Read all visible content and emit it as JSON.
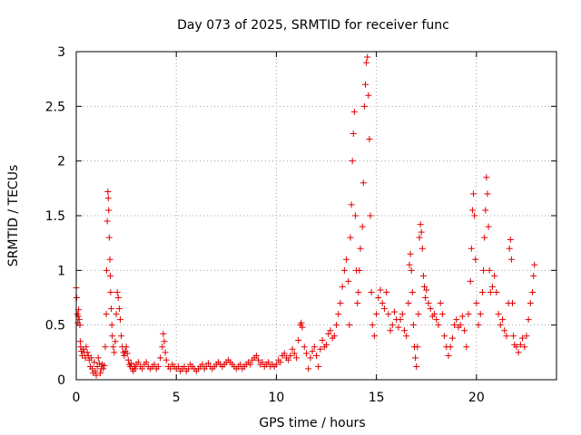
{
  "chart_data": {
    "type": "scatter",
    "title": "Day 073 of 2025, SRMTID for receiver func",
    "xlabel": "GPS time / hours",
    "ylabel": "SRMTID / TECUs",
    "xlim": [
      0,
      24
    ],
    "ylim": [
      0,
      3
    ],
    "grid": true,
    "marker": "plus",
    "x_ticks": [
      0,
      5,
      10,
      15,
      20
    ],
    "x_tick_labels": [
      "0",
      "5",
      "10",
      "15",
      "20"
    ],
    "y_ticks": [
      0,
      0.5,
      1,
      1.5,
      2,
      2.5,
      3
    ],
    "y_tick_labels": [
      "0",
      "0.5",
      "1",
      "1.5",
      "2",
      "2.5",
      "3"
    ],
    "colors": {
      "series": "#e00000",
      "grid": "#a0a0a0",
      "axis": "#000000"
    },
    "series": [
      {
        "name": "SRMTID",
        "points": [
          [
            0.0,
            0.84
          ],
          [
            0.02,
            0.75
          ],
          [
            0.05,
            0.6
          ],
          [
            0.08,
            0.52
          ],
          [
            0.1,
            0.58
          ],
          [
            0.12,
            0.64
          ],
          [
            0.15,
            0.55
          ],
          [
            0.18,
            0.5
          ],
          [
            0.2,
            0.35
          ],
          [
            0.22,
            0.3
          ],
          [
            0.25,
            0.26
          ],
          [
            0.3,
            0.22
          ],
          [
            0.35,
            0.28
          ],
          [
            0.4,
            0.25
          ],
          [
            0.45,
            0.2
          ],
          [
            0.5,
            0.3
          ],
          [
            0.55,
            0.25
          ],
          [
            0.6,
            0.22
          ],
          [
            0.65,
            0.18
          ],
          [
            0.7,
            0.12
          ],
          [
            0.75,
            0.2
          ],
          [
            0.8,
            0.1
          ],
          [
            0.85,
            0.06
          ],
          [
            0.9,
            0.16
          ],
          [
            0.95,
            0.08
          ],
          [
            1.0,
            0.04
          ],
          [
            1.05,
            0.12
          ],
          [
            1.1,
            0.2
          ],
          [
            1.15,
            0.15
          ],
          [
            1.2,
            0.06
          ],
          [
            1.25,
            0.1
          ],
          [
            1.3,
            0.14
          ],
          [
            1.35,
            0.1
          ],
          [
            1.4,
            0.13
          ],
          [
            1.45,
            0.3
          ],
          [
            1.5,
            0.6
          ],
          [
            1.52,
            1.0
          ],
          [
            1.55,
            1.45
          ],
          [
            1.58,
            1.72
          ],
          [
            1.6,
            1.66
          ],
          [
            1.62,
            1.55
          ],
          [
            1.65,
            1.3
          ],
          [
            1.68,
            1.1
          ],
          [
            1.7,
            0.95
          ],
          [
            1.72,
            0.8
          ],
          [
            1.75,
            0.65
          ],
          [
            1.78,
            0.5
          ],
          [
            1.8,
            0.4
          ],
          [
            1.85,
            0.3
          ],
          [
            1.9,
            0.25
          ],
          [
            1.95,
            0.35
          ],
          [
            2.0,
            0.6
          ],
          [
            2.05,
            0.8
          ],
          [
            2.1,
            0.75
          ],
          [
            2.15,
            0.65
          ],
          [
            2.2,
            0.55
          ],
          [
            2.25,
            0.4
          ],
          [
            2.3,
            0.3
          ],
          [
            2.35,
            0.25
          ],
          [
            2.4,
            0.22
          ],
          [
            2.45,
            0.26
          ],
          [
            2.5,
            0.3
          ],
          [
            2.55,
            0.24
          ],
          [
            2.6,
            0.18
          ],
          [
            2.65,
            0.14
          ],
          [
            2.7,
            0.12
          ],
          [
            2.75,
            0.15
          ],
          [
            2.8,
            0.1
          ],
          [
            2.85,
            0.08
          ],
          [
            2.9,
            0.12
          ],
          [
            2.95,
            0.1
          ],
          [
            3.0,
            0.14
          ],
          [
            3.1,
            0.16
          ],
          [
            3.2,
            0.12
          ],
          [
            3.3,
            0.1
          ],
          [
            3.4,
            0.14
          ],
          [
            3.5,
            0.16
          ],
          [
            3.6,
            0.12
          ],
          [
            3.7,
            0.1
          ],
          [
            3.8,
            0.12
          ],
          [
            3.9,
            0.14
          ],
          [
            4.0,
            0.1
          ],
          [
            4.1,
            0.12
          ],
          [
            4.2,
            0.2
          ],
          [
            4.3,
            0.3
          ],
          [
            4.35,
            0.42
          ],
          [
            4.4,
            0.35
          ],
          [
            4.45,
            0.25
          ],
          [
            4.5,
            0.18
          ],
          [
            4.6,
            0.12
          ],
          [
            4.7,
            0.1
          ],
          [
            4.8,
            0.14
          ],
          [
            4.9,
            0.12
          ],
          [
            5.0,
            0.1
          ],
          [
            5.1,
            0.12
          ],
          [
            5.2,
            0.08
          ],
          [
            5.3,
            0.1
          ],
          [
            5.4,
            0.12
          ],
          [
            5.5,
            0.08
          ],
          [
            5.6,
            0.1
          ],
          [
            5.7,
            0.14
          ],
          [
            5.8,
            0.12
          ],
          [
            5.9,
            0.1
          ],
          [
            6.0,
            0.08
          ],
          [
            6.1,
            0.1
          ],
          [
            6.2,
            0.12
          ],
          [
            6.3,
            0.14
          ],
          [
            6.4,
            0.1
          ],
          [
            6.5,
            0.12
          ],
          [
            6.6,
            0.15
          ],
          [
            6.7,
            0.12
          ],
          [
            6.8,
            0.1
          ],
          [
            6.9,
            0.12
          ],
          [
            7.0,
            0.14
          ],
          [
            7.1,
            0.16
          ],
          [
            7.2,
            0.14
          ],
          [
            7.3,
            0.12
          ],
          [
            7.4,
            0.14
          ],
          [
            7.5,
            0.16
          ],
          [
            7.6,
            0.18
          ],
          [
            7.7,
            0.16
          ],
          [
            7.8,
            0.14
          ],
          [
            7.9,
            0.12
          ],
          [
            8.0,
            0.1
          ],
          [
            8.1,
            0.12
          ],
          [
            8.2,
            0.14
          ],
          [
            8.3,
            0.1
          ],
          [
            8.4,
            0.12
          ],
          [
            8.5,
            0.14
          ],
          [
            8.6,
            0.16
          ],
          [
            8.7,
            0.14
          ],
          [
            8.8,
            0.18
          ],
          [
            8.9,
            0.2
          ],
          [
            9.0,
            0.22
          ],
          [
            9.1,
            0.18
          ],
          [
            9.2,
            0.14
          ],
          [
            9.3,
            0.16
          ],
          [
            9.4,
            0.12
          ],
          [
            9.5,
            0.14
          ],
          [
            9.6,
            0.16
          ],
          [
            9.7,
            0.12
          ],
          [
            9.8,
            0.14
          ],
          [
            9.9,
            0.12
          ],
          [
            10.0,
            0.14
          ],
          [
            10.1,
            0.18
          ],
          [
            10.2,
            0.16
          ],
          [
            10.3,
            0.22
          ],
          [
            10.4,
            0.24
          ],
          [
            10.5,
            0.2
          ],
          [
            10.6,
            0.18
          ],
          [
            10.7,
            0.22
          ],
          [
            10.8,
            0.28
          ],
          [
            10.9,
            0.24
          ],
          [
            11.0,
            0.2
          ],
          [
            11.1,
            0.36
          ],
          [
            11.2,
            0.5
          ],
          [
            11.25,
            0.52
          ],
          [
            11.3,
            0.48
          ],
          [
            11.4,
            0.3
          ],
          [
            11.5,
            0.24
          ],
          [
            11.6,
            0.1
          ],
          [
            11.7,
            0.2
          ],
          [
            11.8,
            0.26
          ],
          [
            11.9,
            0.3
          ],
          [
            12.0,
            0.22
          ],
          [
            12.1,
            0.12
          ],
          [
            12.2,
            0.28
          ],
          [
            12.3,
            0.36
          ],
          [
            12.4,
            0.3
          ],
          [
            12.5,
            0.32
          ],
          [
            12.6,
            0.42
          ],
          [
            12.7,
            0.45
          ],
          [
            12.8,
            0.38
          ],
          [
            12.9,
            0.4
          ],
          [
            13.0,
            0.5
          ],
          [
            13.1,
            0.6
          ],
          [
            13.2,
            0.7
          ],
          [
            13.3,
            0.85
          ],
          [
            13.4,
            1.0
          ],
          [
            13.5,
            1.1
          ],
          [
            13.6,
            0.9
          ],
          [
            13.65,
            0.5
          ],
          [
            13.7,
            1.3
          ],
          [
            13.75,
            1.6
          ],
          [
            13.8,
            2.0
          ],
          [
            13.85,
            2.25
          ],
          [
            13.9,
            2.45
          ],
          [
            13.95,
            1.5
          ],
          [
            14.0,
            1.0
          ],
          [
            14.05,
            0.7
          ],
          [
            14.1,
            0.8
          ],
          [
            14.15,
            1.0
          ],
          [
            14.2,
            1.2
          ],
          [
            14.3,
            1.4
          ],
          [
            14.35,
            1.8
          ],
          [
            14.4,
            2.5
          ],
          [
            14.45,
            2.7
          ],
          [
            14.5,
            2.9
          ],
          [
            14.55,
            2.95
          ],
          [
            14.6,
            2.6
          ],
          [
            14.65,
            2.2
          ],
          [
            14.7,
            1.5
          ],
          [
            14.75,
            0.8
          ],
          [
            14.8,
            0.5
          ],
          [
            14.9,
            0.4
          ],
          [
            15.0,
            0.6
          ],
          [
            15.1,
            0.75
          ],
          [
            15.2,
            0.82
          ],
          [
            15.3,
            0.7
          ],
          [
            15.4,
            0.65
          ],
          [
            15.5,
            0.8
          ],
          [
            15.6,
            0.6
          ],
          [
            15.7,
            0.45
          ],
          [
            15.8,
            0.5
          ],
          [
            15.9,
            0.62
          ],
          [
            16.0,
            0.55
          ],
          [
            16.1,
            0.48
          ],
          [
            16.2,
            0.55
          ],
          [
            16.3,
            0.6
          ],
          [
            16.4,
            0.45
          ],
          [
            16.5,
            0.4
          ],
          [
            16.6,
            0.7
          ],
          [
            16.65,
            1.05
          ],
          [
            16.7,
            1.15
          ],
          [
            16.75,
            1.0
          ],
          [
            16.8,
            0.8
          ],
          [
            16.85,
            0.5
          ],
          [
            16.9,
            0.3
          ],
          [
            16.95,
            0.2
          ],
          [
            17.0,
            0.12
          ],
          [
            17.05,
            0.3
          ],
          [
            17.1,
            0.6
          ],
          [
            17.15,
            1.3
          ],
          [
            17.2,
            1.42
          ],
          [
            17.25,
            1.35
          ],
          [
            17.3,
            1.2
          ],
          [
            17.35,
            0.95
          ],
          [
            17.4,
            0.85
          ],
          [
            17.45,
            0.75
          ],
          [
            17.5,
            0.82
          ],
          [
            17.6,
            0.7
          ],
          [
            17.7,
            0.65
          ],
          [
            17.8,
            0.58
          ],
          [
            17.9,
            0.6
          ],
          [
            18.0,
            0.55
          ],
          [
            18.1,
            0.5
          ],
          [
            18.2,
            0.7
          ],
          [
            18.3,
            0.6
          ],
          [
            18.4,
            0.4
          ],
          [
            18.5,
            0.3
          ],
          [
            18.6,
            0.22
          ],
          [
            18.7,
            0.3
          ],
          [
            18.8,
            0.38
          ],
          [
            18.9,
            0.5
          ],
          [
            19.0,
            0.55
          ],
          [
            19.1,
            0.48
          ],
          [
            19.2,
            0.5
          ],
          [
            19.3,
            0.58
          ],
          [
            19.4,
            0.45
          ],
          [
            19.5,
            0.3
          ],
          [
            19.6,
            0.6
          ],
          [
            19.7,
            0.9
          ],
          [
            19.75,
            1.2
          ],
          [
            19.8,
            1.55
          ],
          [
            19.85,
            1.7
          ],
          [
            19.9,
            1.5
          ],
          [
            19.95,
            1.1
          ],
          [
            20.0,
            0.7
          ],
          [
            20.1,
            0.5
          ],
          [
            20.2,
            0.6
          ],
          [
            20.3,
            0.8
          ],
          [
            20.35,
            1.0
          ],
          [
            20.4,
            1.3
          ],
          [
            20.45,
            1.55
          ],
          [
            20.5,
            1.85
          ],
          [
            20.55,
            1.7
          ],
          [
            20.6,
            1.4
          ],
          [
            20.65,
            1.0
          ],
          [
            20.7,
            0.8
          ],
          [
            20.8,
            0.85
          ],
          [
            20.9,
            0.95
          ],
          [
            21.0,
            0.8
          ],
          [
            21.1,
            0.6
          ],
          [
            21.2,
            0.5
          ],
          [
            21.3,
            0.55
          ],
          [
            21.4,
            0.45
          ],
          [
            21.5,
            0.4
          ],
          [
            21.6,
            0.7
          ],
          [
            21.65,
            1.2
          ],
          [
            21.7,
            1.28
          ],
          [
            21.75,
            1.1
          ],
          [
            21.8,
            0.7
          ],
          [
            21.85,
            0.4
          ],
          [
            21.9,
            0.32
          ],
          [
            22.0,
            0.3
          ],
          [
            22.1,
            0.25
          ],
          [
            22.2,
            0.32
          ],
          [
            22.3,
            0.38
          ],
          [
            22.4,
            0.3
          ],
          [
            22.5,
            0.4
          ],
          [
            22.6,
            0.55
          ],
          [
            22.7,
            0.7
          ],
          [
            22.8,
            0.8
          ],
          [
            22.85,
            0.95
          ],
          [
            22.9,
            1.05
          ]
        ]
      }
    ]
  }
}
